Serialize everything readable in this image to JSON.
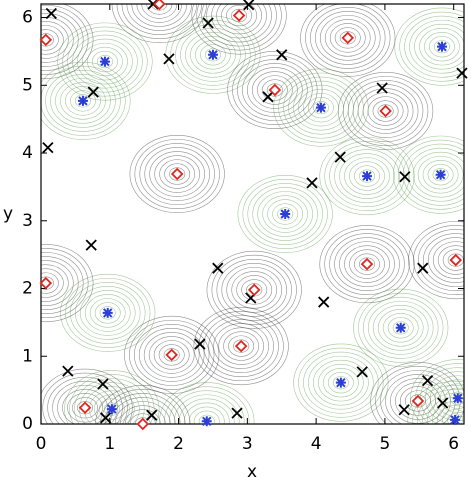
{
  "chart_data": {
    "type": "scatter",
    "x_label": "x",
    "y_label": "y",
    "xlim": [
      0,
      6.15
    ],
    "ylim": [
      0,
      6.2
    ],
    "xticks": [
      0,
      1,
      2,
      3,
      4,
      5,
      6
    ],
    "yticks": [
      0,
      1,
      2,
      3,
      4,
      5,
      6
    ],
    "series": [
      {
        "marker": "cross",
        "color": "#000000",
        "x": [
          0.15,
          1.63,
          3.02,
          2.43,
          1.86,
          3.5,
          6.12,
          0.76,
          3.3,
          4.96,
          0.1,
          4.35,
          3.94,
          5.29,
          0.73,
          2.57,
          5.55,
          3.05,
          4.11,
          2.31,
          0.39,
          0.9,
          4.67,
          5.62,
          0.94,
          1.61,
          2.85,
          5.28,
          5.84
        ],
        "values": [
          6.06,
          6.2,
          6.19,
          5.92,
          5.39,
          5.45,
          5.18,
          4.9,
          4.83,
          4.96,
          4.08,
          3.94,
          3.56,
          3.65,
          2.64,
          2.3,
          2.3,
          1.86,
          1.8,
          1.18,
          0.78,
          0.59,
          0.77,
          0.64,
          0.09,
          0.13,
          0.16,
          0.21,
          0.31
        ]
      },
      {
        "marker": "diamond",
        "color": "#e0261f",
        "x": [
          1.72,
          2.88,
          0.07,
          4.46,
          3.4,
          5.01,
          1.98,
          4.74,
          6.03,
          0.07,
          3.1,
          2.91,
          1.9,
          0.64,
          1.48,
          5.48
        ],
        "values": [
          6.2,
          6.03,
          5.67,
          5.7,
          4.93,
          4.62,
          3.69,
          2.36,
          2.42,
          2.08,
          1.98,
          1.15,
          1.02,
          0.24,
          0.0,
          0.34
        ]
      },
      {
        "marker": "asterisk",
        "color": "#2b3fd6",
        "x": [
          0.93,
          2.5,
          5.83,
          0.61,
          4.07,
          4.74,
          5.81,
          3.55,
          0.97,
          5.23,
          4.36,
          1.03,
          2.41,
          6.06,
          6.02
        ],
        "values": [
          5.35,
          5.45,
          5.57,
          4.77,
          4.67,
          3.66,
          3.68,
          3.1,
          1.64,
          1.42,
          0.61,
          0.22,
          0.04,
          0.38,
          0.06
        ]
      }
    ]
  }
}
